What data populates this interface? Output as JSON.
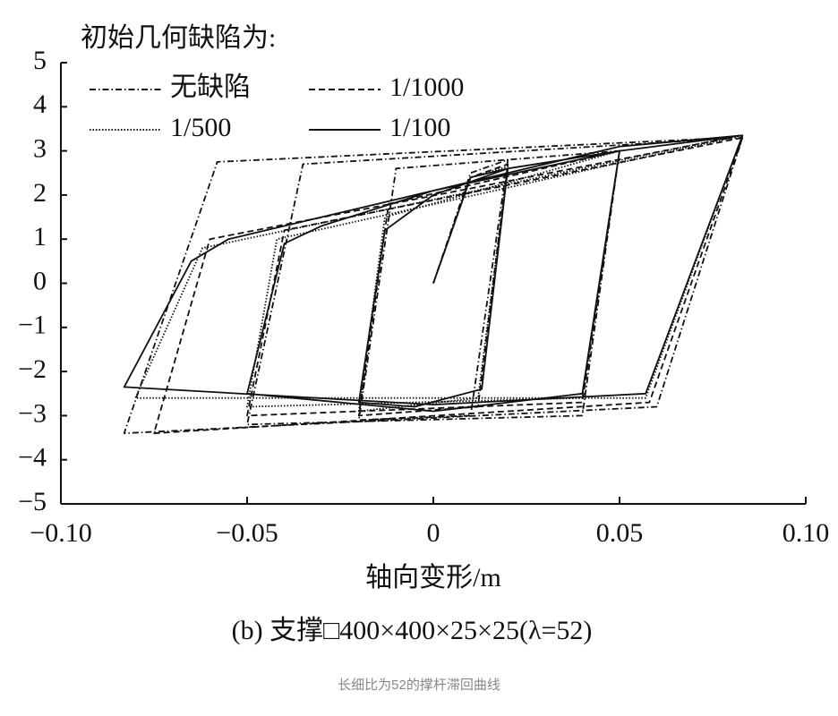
{
  "chart_data": {
    "type": "line",
    "legend_title": "初始几何缺陷为:",
    "x_label": "轴向变形/m",
    "subtitle": "(b) 支撑□400×400×25×25(λ=52)",
    "xlim": [
      -0.1,
      0.1
    ],
    "ylim": [
      -5,
      5
    ],
    "xticks": [
      {
        "value": -0.1,
        "label": "−0.10"
      },
      {
        "value": -0.05,
        "label": "−0.05"
      },
      0,
      0.05,
      {
        "value": 0.1,
        "label": "0.10"
      }
    ],
    "yticks": [
      5,
      4,
      3,
      2,
      1,
      0,
      {
        "value": -1,
        "label": "−1"
      },
      {
        "value": -2,
        "label": "−2"
      },
      {
        "value": -3,
        "label": "−3"
      },
      {
        "value": -4,
        "label": "−4"
      },
      {
        "value": -5,
        "label": "−5"
      }
    ],
    "grid": false,
    "legend": "upper left",
    "series": [
      {
        "name": "无缺陷",
        "color": "#111111",
        "dash": "7 3 1.5 3",
        "x": [
          0,
          0.01,
          0.02,
          0.01,
          -0.02,
          -0.01,
          0.05,
          0.04,
          -0.05,
          -0.035,
          0.083,
          0.06,
          -0.083,
          -0.058,
          0.08
        ],
        "values": [
          0,
          2.5,
          2.8,
          -3.0,
          -3.1,
          2.6,
          3.0,
          -3.0,
          -3.2,
          2.7,
          3.3,
          -2.8,
          -3.4,
          2.75,
          3.3
        ]
      },
      {
        "name": "1/1000",
        "color": "#111111",
        "dash": "7 4",
        "x": [
          0,
          0.01,
          0.02,
          0.012,
          -0.02,
          -0.012,
          0.05,
          0.04,
          -0.05,
          -0.04,
          0.083,
          0.058,
          -0.075,
          -0.06,
          0.08
        ],
        "values": [
          0,
          2.4,
          2.7,
          -2.8,
          -3.0,
          1.8,
          3.0,
          -2.7,
          -3.0,
          1.2,
          3.3,
          -2.7,
          -3.4,
          1.0,
          3.3
        ]
      },
      {
        "name": "1/500",
        "color": "#111111",
        "dash": "1.5 2",
        "x": [
          0,
          0.01,
          0.02,
          0.012,
          -0.02,
          -0.013,
          0.05,
          0.04,
          -0.05,
          -0.042,
          0.083,
          0.057,
          -0.08,
          -0.062,
          0.082
        ],
        "values": [
          0,
          2.4,
          2.65,
          -2.6,
          -2.9,
          1.5,
          3.0,
          -2.6,
          -2.8,
          1.0,
          3.35,
          -2.6,
          -2.6,
          0.8,
          3.35
        ]
      },
      {
        "name": "1/100",
        "color": "#111111",
        "dash": "none",
        "x": [
          0,
          0.01,
          0.02,
          0.013,
          -0.005,
          -0.02,
          -0.013,
          0,
          0.02,
          0.05,
          0.04,
          0,
          -0.05,
          -0.04,
          -0.03,
          0,
          0.05,
          0.083,
          0.057,
          0,
          -0.083,
          -0.065,
          -0.055,
          -0.02,
          0.01,
          0.05,
          0.083
        ],
        "values": [
          0,
          2.4,
          2.6,
          -2.4,
          -2.8,
          -2.7,
          1.2,
          2.0,
          2.6,
          3.0,
          -2.5,
          -2.9,
          -2.5,
          0.9,
          1.3,
          2.1,
          3.0,
          3.35,
          -2.5,
          -2.75,
          -2.35,
          0.5,
          1.0,
          1.7,
          2.3,
          3.1,
          3.35
        ]
      }
    ]
  },
  "caption": "长细比为52的撑杆滞回曲线"
}
